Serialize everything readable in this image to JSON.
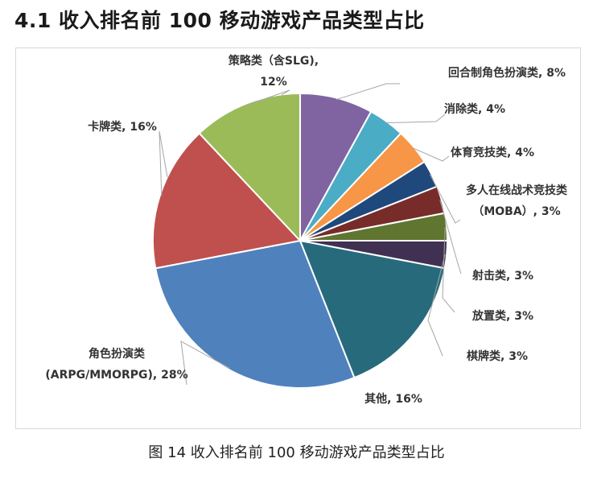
{
  "heading": "4.1 收入排名前 100 移动游戏产品类型占比",
  "caption": "图 14  收入排名前 100 移动游戏产品类型占比",
  "chart_data": {
    "type": "pie",
    "title": "",
    "unit": "%",
    "start_angle_deg": 0,
    "direction": "clockwise",
    "legend": "none",
    "slices": [
      {
        "name": "回合制角色扮演类",
        "value": 8,
        "color": "#8064a2",
        "label_lines": [
          "回合制角色扮演类, 8%"
        ]
      },
      {
        "name": "消除类",
        "value": 4,
        "color": "#4bacc6",
        "label_lines": [
          "消除类, 4%"
        ]
      },
      {
        "name": "体育竞技类",
        "value": 4,
        "color": "#f79646",
        "label_lines": [
          "体育竞技类, 4%"
        ]
      },
      {
        "name": "多人在线战术竞技类（MOBA）",
        "value": 3,
        "color": "#1f497d",
        "label_lines": [
          "多人在线战术竞技类",
          "（MOBA）, 3%"
        ]
      },
      {
        "name": "射击类",
        "value": 3,
        "color": "#772c2a",
        "label_lines": [
          "射击类, 3%"
        ]
      },
      {
        "name": "放置类",
        "value": 3,
        "color": "#5f7530",
        "label_lines": [
          "放置类, 3%"
        ]
      },
      {
        "name": "棋牌类",
        "value": 3,
        "color": "#403152",
        "label_lines": [
          "棋牌类, 3%"
        ]
      },
      {
        "name": "其他",
        "value": 16,
        "color": "#276a7c",
        "label_lines": [
          "其他, 16%"
        ]
      },
      {
        "name": "角色扮演类（ARPG/MMORPG）",
        "value": 28,
        "color": "#4f81bd",
        "label_lines": [
          "角色扮演类",
          "(ARPG/MMORPG), 28%"
        ]
      },
      {
        "name": "卡牌类",
        "value": 16,
        "color": "#c0504d",
        "label_lines": [
          "卡牌类, 16%"
        ]
      },
      {
        "name": "策略类（含SLG）",
        "value": 12,
        "color": "#9bbb59",
        "label_lines": [
          "策略类（含SLG),",
          "12%"
        ]
      }
    ]
  }
}
